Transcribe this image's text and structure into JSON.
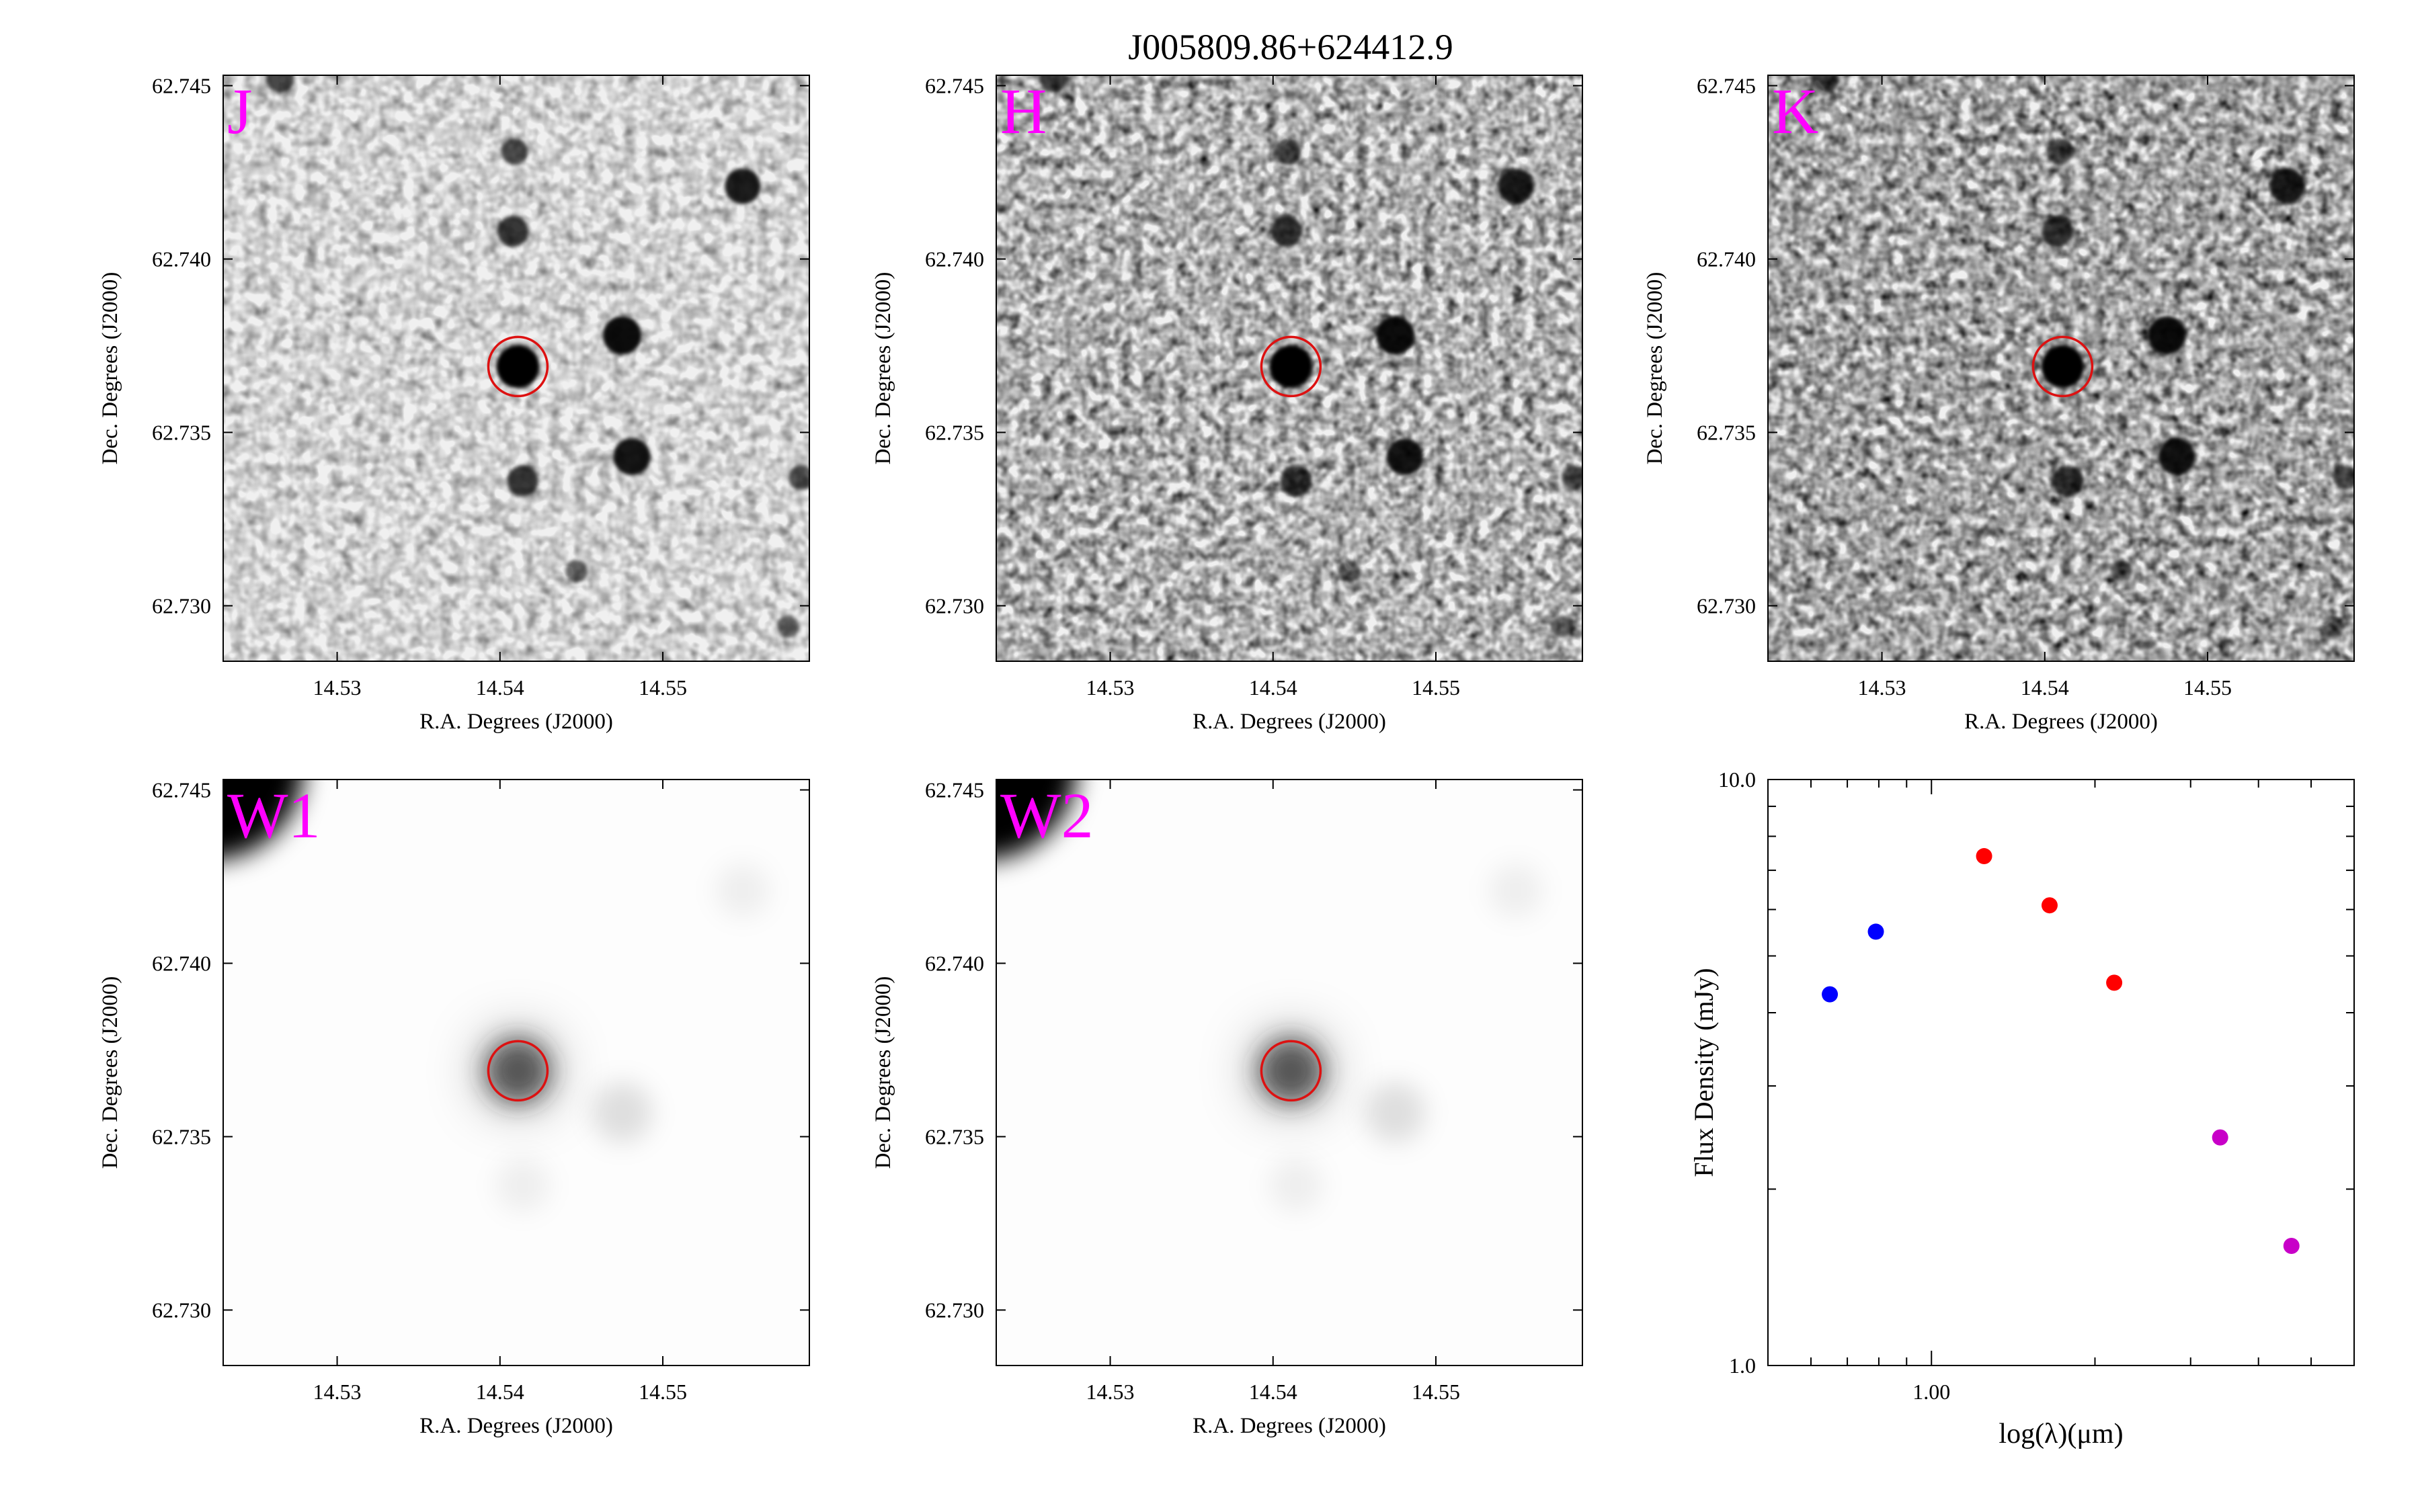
{
  "figure": {
    "title": "J005809.86+624412.9"
  },
  "colors": {
    "band_label": "#ff00ff",
    "target_circle": "#dd1111",
    "sed_blue": "#0000ff",
    "sed_red": "#ff0000",
    "sed_magenta": "#c800c8"
  },
  "image_panels": [
    {
      "band": "J",
      "survey": "near-infrared",
      "style": "sharp",
      "corner_source": "faint"
    },
    {
      "band": "H",
      "survey": "near-infrared",
      "style": "sharp",
      "corner_source": "faint"
    },
    {
      "band": "K",
      "survey": "near-infrared",
      "style": "sharp",
      "corner_source": "faint"
    },
    {
      "band": "W1",
      "survey": "mid-infrared",
      "style": "smooth",
      "corner_source": "bright"
    },
    {
      "band": "W2",
      "survey": "mid-infrared",
      "style": "smooth",
      "corner_source": "bright"
    }
  ],
  "image_axes": {
    "xlabel": "R.A. Degrees (J2000)",
    "ylabel": "Dec. Degrees (J2000)",
    "xlim": [
      14.523,
      14.559
    ],
    "ylim": [
      62.7284,
      62.7453
    ],
    "xticks": [
      14.53,
      14.54,
      14.55
    ],
    "xticklabels": [
      "14.53",
      "14.54",
      "14.55"
    ],
    "yticks": [
      62.73,
      62.735,
      62.74,
      62.745
    ],
    "yticklabels": [
      "62.730",
      "62.735",
      "62.740",
      "62.745"
    ],
    "target": {
      "ra": 14.5411,
      "dec": 62.7369
    }
  },
  "sources": [
    {
      "ra": 14.5411,
      "dec": 62.7369,
      "mag": 1.0
    },
    {
      "ra": 14.5475,
      "dec": 62.7378,
      "mag": 0.85
    },
    {
      "ra": 14.5481,
      "dec": 62.7343,
      "mag": 0.8
    },
    {
      "ra": 14.5549,
      "dec": 62.7421,
      "mag": 0.75
    },
    {
      "ra": 14.5408,
      "dec": 62.7408,
      "mag": 0.6
    },
    {
      "ra": 14.5409,
      "dec": 62.7431,
      "mag": 0.45
    },
    {
      "ra": 14.5414,
      "dec": 62.7336,
      "mag": 0.6
    },
    {
      "ra": 14.5447,
      "dec": 62.731,
      "mag": 0.3
    },
    {
      "ra": 14.5265,
      "dec": 62.7452,
      "mag": 0.5
    },
    {
      "ra": 14.5585,
      "dec": 62.7337,
      "mag": 0.4
    },
    {
      "ra": 14.5577,
      "dec": 62.7294,
      "mag": 0.3
    }
  ],
  "chart_data": {
    "type": "scatter",
    "title": "",
    "xlabel": "log(λ)(μm)",
    "ylabel": "Flux Density (mJy)",
    "xscale": "log",
    "yscale": "log",
    "xlim": [
      0.5,
      6.0
    ],
    "ylim": [
      1.0,
      10.0
    ],
    "xticklabels": [
      "1.00"
    ],
    "yticklabels": [
      "1.0",
      "10.0"
    ],
    "grid": false,
    "series": [
      {
        "color": "#0000ff",
        "x": [
          0.65,
          0.79
        ],
        "y": [
          4.3,
          5.5
        ]
      },
      {
        "color": "#ff0000",
        "x": [
          1.25,
          1.65,
          2.17
        ],
        "y": [
          7.4,
          6.1,
          4.5
        ]
      },
      {
        "color": "#c800c8",
        "x": [
          3.4,
          4.6
        ],
        "y": [
          2.45,
          1.6
        ]
      }
    ]
  }
}
